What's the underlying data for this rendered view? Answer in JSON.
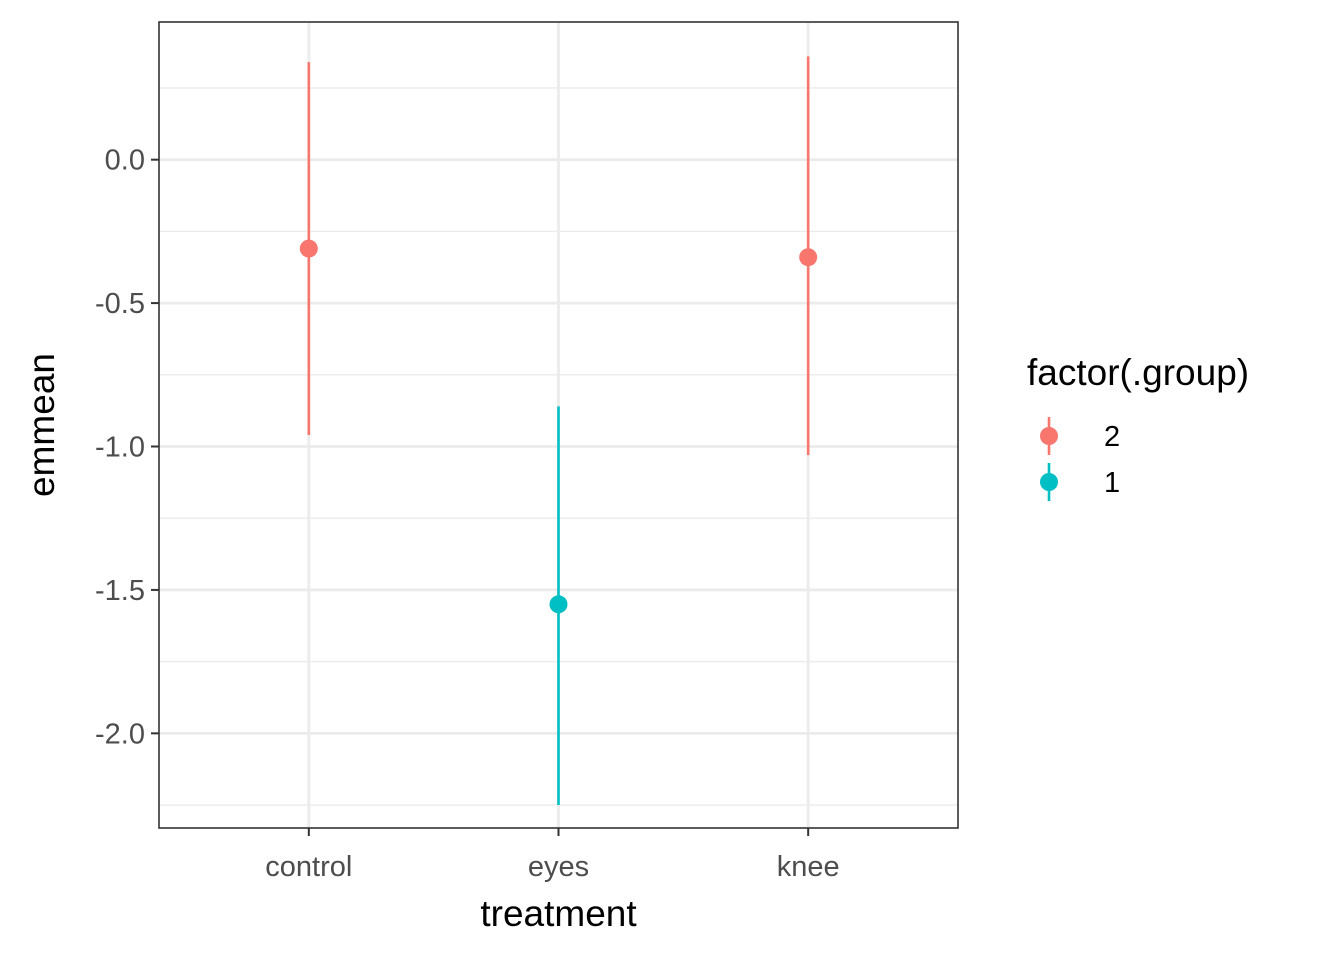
{
  "chart_data": {
    "type": "scatter",
    "subtype": "point-range",
    "xlabel": "treatment",
    "ylabel": "emmean",
    "categories": [
      "control",
      "eyes",
      "knee"
    ],
    "ylim": [
      -2.33,
      0.48
    ],
    "y_ticks": [
      0.0,
      -0.5,
      -1.0,
      -1.5,
      -2.0
    ],
    "y_tick_labels": [
      "0.0",
      "-0.5",
      "-1.0",
      "-1.5",
      "-2.0"
    ],
    "grid": true,
    "theme": "bw",
    "legend": {
      "title": "factor(.group)",
      "position": "right",
      "entries": [
        {
          "label": " 2",
          "color": "#F8766D"
        },
        {
          "label": "1",
          "color": "#00BFC4"
        }
      ]
    },
    "points": [
      {
        "x": "control",
        "y": -0.31,
        "lower": -0.96,
        "upper": 0.34,
        "group": " 2",
        "color": "#F8766D"
      },
      {
        "x": "eyes",
        "y": -1.55,
        "lower": -2.25,
        "upper": -0.86,
        "group": "1",
        "color": "#00BFC4"
      },
      {
        "x": "knee",
        "y": -0.34,
        "lower": -1.03,
        "upper": 0.36,
        "group": " 2",
        "color": "#F8766D"
      }
    ]
  }
}
